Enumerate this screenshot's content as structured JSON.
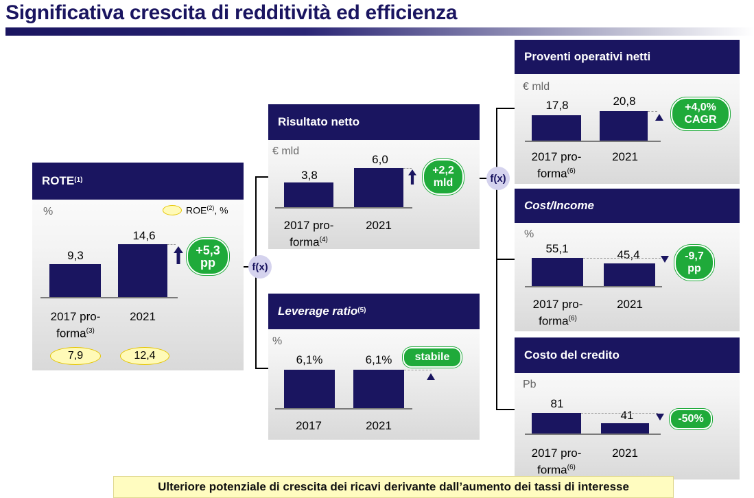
{
  "title": "Significativa crescita di redditività ed efficienza",
  "rote": {
    "title": "ROTE",
    "title_note": "(1)",
    "unit": "%",
    "legend_label": "ROE",
    "legend_note": "(2)",
    "legend_unit": ", %",
    "values": [
      "9,3",
      "14,6"
    ],
    "cat1_line1": "2017 pro-",
    "cat1_line2": "forma",
    "cat1_note": "(3)",
    "cat2": "2021",
    "roe_values": [
      "7,9",
      "12,4"
    ],
    "delta_line1": "+5,3",
    "delta_line2": "pp"
  },
  "fx_label": "f(x)",
  "risultato": {
    "title": "Risultato netto",
    "unit": "€ mld",
    "values": [
      "3,8",
      "6,0"
    ],
    "cat1_line1": "2017 pro-",
    "cat1_line2": "forma",
    "cat1_note": "(4)",
    "cat2": "2021",
    "delta_line1": "+2,2",
    "delta_line2": "mld"
  },
  "leverage": {
    "title": "Leverage ratio",
    "title_note": "(5)",
    "unit": "%",
    "values": [
      "6,1%",
      "6,1%"
    ],
    "cat1": "2017",
    "cat2": "2021",
    "delta": "stabile"
  },
  "proventi": {
    "title": "Proventi operativi netti",
    "unit": "€ mld",
    "values": [
      "17,8",
      "20,8"
    ],
    "cat1_line1": "2017 pro-",
    "cat1_line2": "forma",
    "cat1_note": "(6)",
    "cat2": "2021",
    "delta_line1": "+4,0%",
    "delta_line2": "CAGR"
  },
  "costincome": {
    "title": "Cost/Income",
    "unit": "%",
    "values": [
      "55,1",
      "45,4"
    ],
    "cat1_line1": "2017 pro-",
    "cat1_line2": "forma",
    "cat1_note": "(6)",
    "cat2": "2021",
    "delta_line1": "-9,7",
    "delta_line2": "pp"
  },
  "credito": {
    "title": "Costo del credito",
    "unit": "Pb",
    "values": [
      "81",
      "41"
    ],
    "cat1_line1": "2017 pro-",
    "cat1_line2": "forma",
    "cat1_note": "(6)",
    "cat2": "2021",
    "delta": "-50%"
  },
  "footer": "Ulteriore potenziale di crescita dei ricavi derivante dall’aumento dei tassi di interesse",
  "colors": {
    "navy": "#1a1560",
    "green": "#1faa3a",
    "yellow": "#fffab8"
  }
}
